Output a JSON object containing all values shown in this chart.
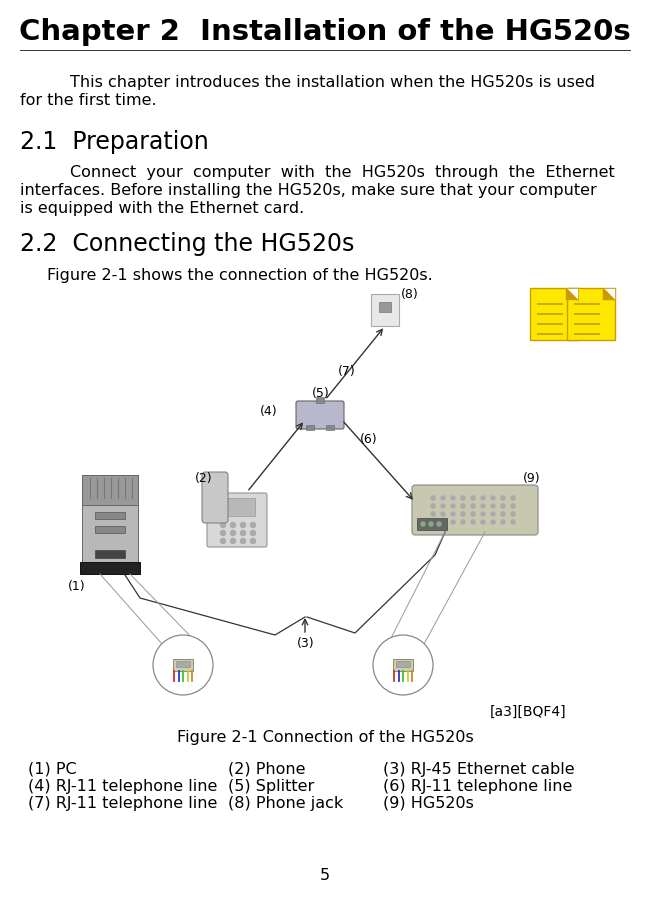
{
  "title": "Chapter 2  Installation of the HG520s",
  "intro_line1": "This chapter introduces the installation when the HG520s is used",
  "intro_line2": "for the first time.",
  "section21_title": "2.1  Preparation",
  "body21_line1": "Connect  your  computer  with  the  HG520s  through  the  Ethernet",
  "body21_line2": "interfaces. Before installing the HG520s, make sure that your computer",
  "body21_line3": "is equipped with the Ethernet card.",
  "section22_title": "2.2  Connecting the HG520s",
  "figure_intro": "Figure 2-1 shows the connection of the HG520s.",
  "figure_caption": "Figure 2-1 Connection of the HG520s",
  "annotation": "[a3][BQF4]",
  "legend_col1": [
    "(1) PC",
    "(4) RJ-11 telephone line",
    "(7) RJ-11 telephone line"
  ],
  "legend_col2": [
    "(2) Phone",
    "(5) Splitter",
    "(8) Phone jack"
  ],
  "legend_col3": [
    "(3) RJ-45 Ethernet cable",
    "(6) RJ-11 telephone line",
    "(9) HG520s"
  ],
  "page_number": "5",
  "bg_color": "#ffffff",
  "text_color": "#000000",
  "title_fontsize": 21,
  "section_fontsize": 17,
  "body_fontsize": 11.5,
  "label_fontsize": 9
}
